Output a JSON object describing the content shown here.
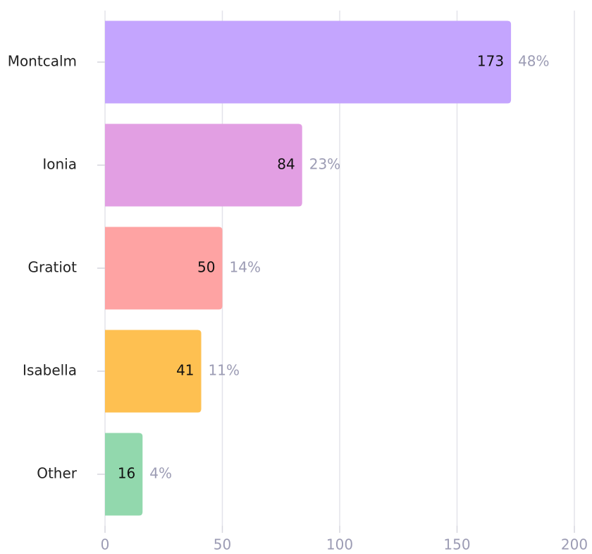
{
  "chart_data": {
    "type": "bar",
    "orientation": "horizontal",
    "categories": [
      "Montcalm",
      "Ionia",
      "Gratiot",
      "Isabella",
      "Other"
    ],
    "values": [
      173,
      84,
      50,
      41,
      16
    ],
    "shares": [
      48,
      23,
      14,
      11,
      4
    ],
    "share_labels": [
      "48%",
      "23%",
      "14%",
      "11%",
      "4%"
    ],
    "colors": [
      "#c4a5fe",
      "#e29fe3",
      "#fea3a3",
      "#fec051",
      "#92d8ad"
    ],
    "xlim": [
      0,
      200
    ],
    "xticks": [
      0,
      50,
      100,
      150,
      200
    ],
    "grid": true
  }
}
